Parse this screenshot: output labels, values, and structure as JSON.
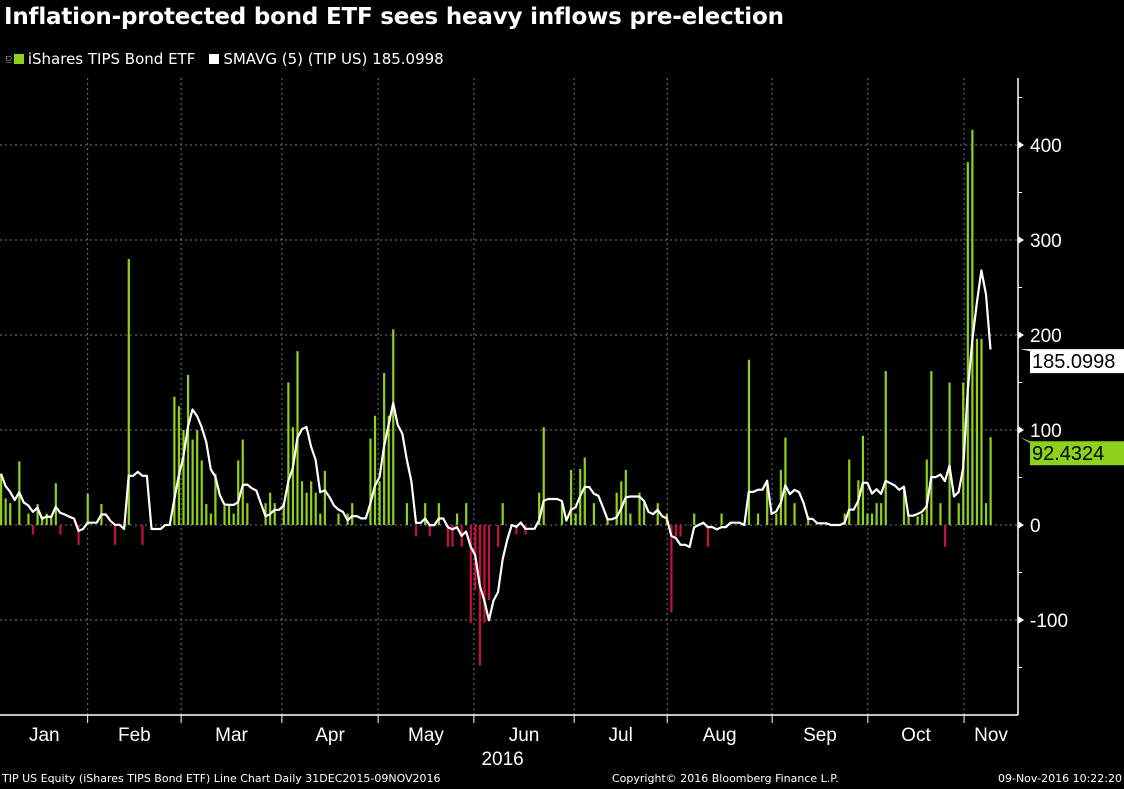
{
  "title": "Inflation-protected bond ETF sees heavy inflows pre-election",
  "legend": {
    "series1": "iShares TIPS Bond ETF",
    "series2": "SMAVG (5) (TIP US) 185.0998"
  },
  "colors": {
    "positive": "#8ed11c",
    "negative": "#c8103c",
    "sma": "#ffffff",
    "grid": "#777777"
  },
  "footer": {
    "left": "TIP US Equity (iShares TIPS Bond ETF) Line Chart  Daily 31DEC2015-09NOV2016",
    "center": "Copyright© 2016 Bloomberg Finance L.P.",
    "right": "09-Nov-2016 10:22:20"
  },
  "chart_data": {
    "type": "bar",
    "title": "Inflation-protected bond ETF sees heavy inflows pre-election",
    "x_unit": "trading day index (0 = 31 Dec 2015)",
    "num_days": 218,
    "ylim": [
      -200,
      470
    ],
    "yticks": [
      -100,
      0,
      100,
      200,
      300,
      400
    ],
    "ytick_labels": [
      "-100",
      "0",
      "100",
      "200",
      "300",
      "400"
    ],
    "month_labels": [
      {
        "label": "Jan",
        "start_day": 0,
        "end_day": 19
      },
      {
        "label": "Feb",
        "start_day": 19,
        "end_day": 39.5
      },
      {
        "label": "Mar",
        "start_day": 39.5,
        "end_day": 61.6
      },
      {
        "label": "Apr",
        "start_day": 61.6,
        "end_day": 82.7
      },
      {
        "label": "May",
        "start_day": 82.7,
        "end_day": 103.7
      },
      {
        "label": "Jun",
        "start_day": 103.7,
        "end_day": 125.7
      },
      {
        "label": "Jul",
        "start_day": 125.7,
        "end_day": 146.1
      },
      {
        "label": "Aug",
        "start_day": 146.1,
        "end_day": 169.1
      },
      {
        "label": "Sep",
        "start_day": 169.1,
        "end_day": 190.1
      },
      {
        "label": "Oct",
        "start_day": 190.1,
        "end_day": 211.2
      },
      {
        "label": "Nov",
        "start_day": 211.2,
        "end_day": 223.2
      }
    ],
    "year_label": "2016",
    "grid": true,
    "legend_position": "top-left",
    "sma_period": 5,
    "last_values": {
      "sma": "185.0998",
      "bar": "92.4324"
    },
    "bars": [
      [
        0,
        54
      ],
      [
        1,
        28
      ],
      [
        2,
        23
      ],
      [
        4,
        67
      ],
      [
        6,
        12
      ],
      [
        7,
        -10
      ],
      [
        8,
        22
      ],
      [
        9,
        9
      ],
      [
        10,
        12
      ],
      [
        11,
        9
      ],
      [
        12,
        44
      ],
      [
        13,
        -10
      ],
      [
        17,
        -21
      ],
      [
        19,
        33
      ],
      [
        22,
        22
      ],
      [
        25,
        -21
      ],
      [
        28,
        280
      ],
      [
        31,
        -21
      ],
      [
        38,
        135
      ],
      [
        39,
        125
      ],
      [
        40,
        100
      ],
      [
        41,
        158
      ],
      [
        42,
        90
      ],
      [
        43,
        100
      ],
      [
        44,
        68
      ],
      [
        45,
        22
      ],
      [
        46,
        12
      ],
      [
        47,
        54
      ],
      [
        49,
        20
      ],
      [
        50,
        20
      ],
      [
        51,
        12
      ],
      [
        52,
        68
      ],
      [
        53,
        90
      ],
      [
        54,
        23
      ],
      [
        58,
        23
      ],
      [
        59,
        34
      ],
      [
        60,
        23
      ],
      [
        62,
        23
      ],
      [
        63,
        150
      ],
      [
        64,
        103
      ],
      [
        65,
        183
      ],
      [
        66,
        46
      ],
      [
        67,
        34
      ],
      [
        68,
        46
      ],
      [
        69,
        34
      ],
      [
        70,
        12
      ],
      [
        71,
        57
      ],
      [
        74,
        12
      ],
      [
        76,
        12
      ],
      [
        77,
        23
      ],
      [
        81,
        91
      ],
      [
        82,
        115
      ],
      [
        83,
        46
      ],
      [
        84,
        160
      ],
      [
        85,
        115
      ],
      [
        86,
        206
      ],
      [
        89,
        23
      ],
      [
        91,
        -12
      ],
      [
        93,
        23
      ],
      [
        94,
        -12
      ],
      [
        96,
        23
      ],
      [
        98,
        -23
      ],
      [
        99,
        -23
      ],
      [
        100,
        12
      ],
      [
        101,
        -23
      ],
      [
        102,
        23
      ],
      [
        103,
        -103
      ],
      [
        104,
        -68
      ],
      [
        105,
        -148
      ],
      [
        106,
        -103
      ],
      [
        107,
        -79
      ],
      [
        109,
        -23
      ],
      [
        110,
        23
      ],
      [
        113,
        -10
      ],
      [
        115,
        -10
      ],
      [
        118,
        34
      ],
      [
        119,
        103
      ],
      [
        123,
        23
      ],
      [
        125,
        58
      ],
      [
        126,
        12
      ],
      [
        127,
        59
      ],
      [
        128,
        71
      ],
      [
        130,
        23
      ],
      [
        133,
        7
      ],
      [
        135,
        34
      ],
      [
        136,
        46
      ],
      [
        137,
        58
      ],
      [
        138,
        12
      ],
      [
        140,
        34
      ],
      [
        141,
        23
      ],
      [
        144,
        23
      ],
      [
        146,
        12
      ],
      [
        147,
        -92
      ],
      [
        148,
        -12
      ],
      [
        149,
        -12
      ],
      [
        152,
        12
      ],
      [
        155,
        -23
      ],
      [
        158,
        12
      ],
      [
        164,
        174
      ],
      [
        166,
        12
      ],
      [
        168,
        47
      ],
      [
        170,
        12
      ],
      [
        171,
        58
      ],
      [
        172,
        92
      ],
      [
        174,
        23
      ],
      [
        177,
        9
      ],
      [
        185,
        12
      ],
      [
        186,
        69
      ],
      [
        188,
        47
      ],
      [
        189,
        94
      ],
      [
        190,
        12
      ],
      [
        191,
        12
      ],
      [
        192,
        23
      ],
      [
        193,
        23
      ],
      [
        194,
        162
      ],
      [
        198,
        40
      ],
      [
        199,
        9
      ],
      [
        201,
        9
      ],
      [
        202,
        12
      ],
      [
        203,
        69
      ],
      [
        204,
        162
      ],
      [
        206,
        23
      ],
      [
        207,
        -23
      ],
      [
        208,
        150
      ],
      [
        210,
        23
      ],
      [
        211,
        150
      ],
      [
        212,
        382
      ],
      [
        213,
        416
      ],
      [
        214,
        196
      ],
      [
        215,
        196
      ],
      [
        216,
        23
      ],
      [
        217,
        92.4324
      ]
    ]
  }
}
